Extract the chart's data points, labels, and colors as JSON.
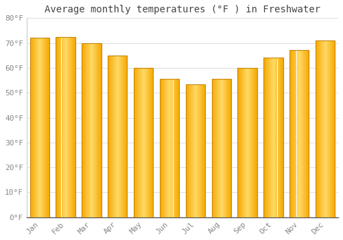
{
  "title": "Average monthly temperatures (°F ) in Freshwater",
  "months": [
    "Jan",
    "Feb",
    "Mar",
    "Apr",
    "May",
    "Jun",
    "Jul",
    "Aug",
    "Sep",
    "Oct",
    "Nov",
    "Dec"
  ],
  "values": [
    72,
    72.5,
    70,
    65,
    60,
    55.5,
    53.5,
    55.5,
    60,
    64,
    67,
    71
  ],
  "ylim": [
    0,
    80
  ],
  "yticks": [
    0,
    10,
    20,
    30,
    40,
    50,
    60,
    70,
    80
  ],
  "ytick_labels": [
    "0°F",
    "10°F",
    "20°F",
    "30°F",
    "40°F",
    "50°F",
    "60°F",
    "70°F",
    "80°F"
  ],
  "bar_color_center": "#FFD966",
  "bar_color_edge": "#F5A800",
  "bar_color_bottom": "#F5A800",
  "background_color": "#FFFFFF",
  "grid_color": "#DDDDDD",
  "title_fontsize": 10,
  "tick_fontsize": 8,
  "font_family": "monospace",
  "tick_color": "#888888",
  "title_color": "#444444"
}
